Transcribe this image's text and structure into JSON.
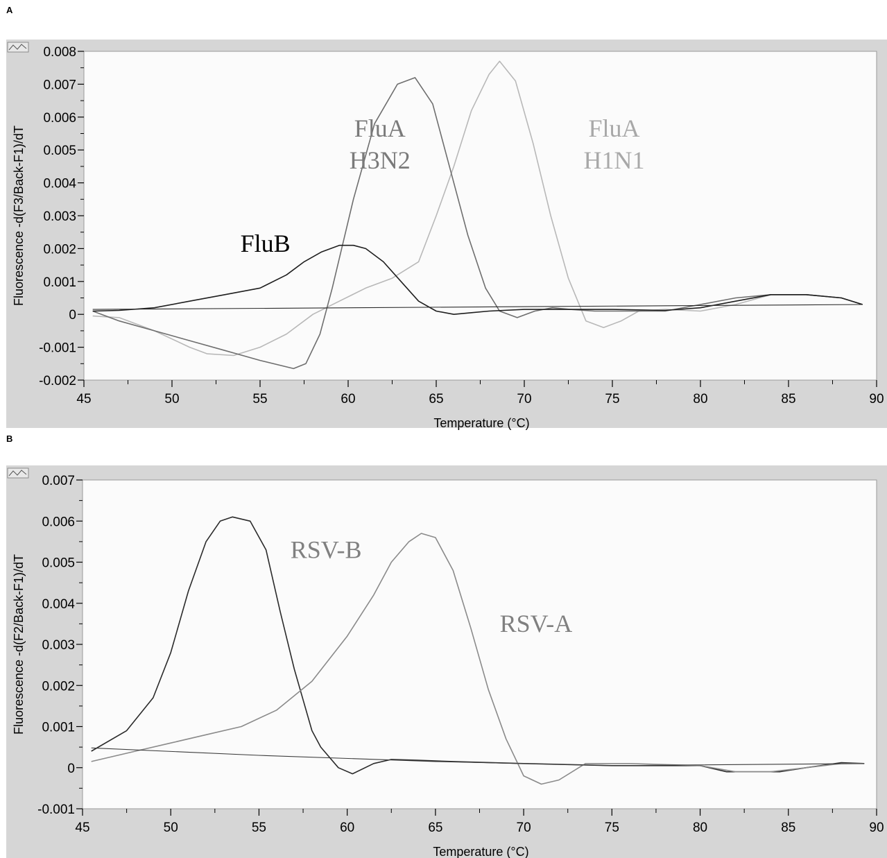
{
  "chart_data": [
    {
      "panel": "A",
      "type": "line",
      "xlabel": "Temperature (°C)",
      "ylabel": "Fluorescence -d(F3/Back-F1)/dT",
      "xlim": [
        45,
        90
      ],
      "ylim": [
        -0.002,
        0.008
      ],
      "xticks": [
        45,
        50,
        55,
        60,
        65,
        70,
        75,
        80,
        85,
        90
      ],
      "xtick_labels": [
        "45",
        "50",
        "55",
        "60",
        "65",
        "70",
        "75",
        "80",
        "85",
        "90"
      ],
      "yticks": [
        -0.002,
        -0.001,
        0,
        0.001,
        0.002,
        0.003,
        0.004,
        0.005,
        0.006,
        0.007,
        0.008
      ],
      "ytick_labels": [
        "-0.002",
        "-0.001",
        "0",
        "0.001",
        "0.002",
        "0.003",
        "0.004",
        "0.005",
        "0.006",
        "0.007",
        "0.008"
      ],
      "grid": false,
      "series": [
        {
          "name": "FluA H1N1",
          "color": "#b8b8b8",
          "width": 1.6,
          "x": [
            45.5,
            47,
            49,
            51,
            52,
            53.5,
            55,
            56.5,
            58,
            59.5,
            61,
            62.5,
            64,
            65,
            66,
            67,
            68,
            68.6,
            69.5,
            70.5,
            71.5,
            72.5,
            73.5,
            74.5,
            75.5,
            76.5,
            78,
            80,
            82,
            84,
            86,
            88,
            89.2
          ],
          "y": [
            -5e-05,
            -0.0001,
            -0.0005,
            -0.001,
            -0.0012,
            -0.00125,
            -0.001,
            -0.0006,
            0,
            0.0004,
            0.0008,
            0.0011,
            0.0016,
            0.003,
            0.0045,
            0.0062,
            0.0073,
            0.0077,
            0.0071,
            0.0052,
            0.003,
            0.0011,
            -0.0002,
            -0.0004,
            -0.0002,
            0.0001,
            0.00015,
            0.0001,
            0.0003,
            0.0006,
            0.0006,
            0.0005,
            0.0003
          ]
        },
        {
          "name": "FluA H3N2",
          "color": "#6e6e6e",
          "width": 1.6,
          "x": [
            45.5,
            47,
            49,
            51,
            53,
            55,
            56.9,
            57.6,
            58.4,
            59.1,
            60.3,
            61.5,
            62.8,
            63.8,
            64.8,
            65.8,
            66.8,
            67.8,
            68.6,
            69.6,
            70.6,
            71.6,
            72.6,
            74,
            76,
            78,
            80,
            82,
            84,
            86,
            88,
            89.2
          ],
          "y": [
            0.0001,
            -0.0002,
            -0.0005,
            -0.0008,
            -0.0011,
            -0.0014,
            -0.00165,
            -0.0015,
            -0.0006,
            0.0008,
            0.0035,
            0.0058,
            0.007,
            0.0072,
            0.0064,
            0.0044,
            0.0024,
            0.0008,
            0.0001,
            -0.0001,
            0.0001,
            0.0002,
            0.00015,
            0.0001,
            0.0001,
            0.0001,
            0.0003,
            0.0005,
            0.0006,
            0.0006,
            0.0005,
            0.0003
          ]
        },
        {
          "name": "FluB",
          "color": "#1e1e1e",
          "width": 1.6,
          "x": [
            45.5,
            47,
            49,
            51,
            53,
            55,
            56.5,
            57.5,
            58.5,
            59.5,
            60.3,
            61,
            62,
            63,
            64,
            65,
            66,
            67,
            68,
            70,
            72,
            75,
            78,
            80,
            82,
            84,
            86,
            88,
            89.2
          ],
          "y": [
            0.0001,
            0.00012,
            0.0002,
            0.0004,
            0.0006,
            0.0008,
            0.0012,
            0.0016,
            0.0019,
            0.0021,
            0.0021,
            0.002,
            0.0016,
            0.001,
            0.0004,
            0.0001,
            0,
            5e-05,
            0.0001,
            0.00015,
            0.00015,
            0.00015,
            0.00012,
            0.0002,
            0.0004,
            0.0006,
            0.0006,
            0.0005,
            0.0003
          ]
        },
        {
          "name": "",
          "color": "#2a2a2a",
          "width": 1.1,
          "x": [
            45.5,
            89.2
          ],
          "y": [
            0.00015,
            0.0003
          ]
        }
      ],
      "annotations": [
        {
          "lines": [
            "FluA",
            "H3N2"
          ],
          "x": 61.8,
          "y": 0.0054,
          "color": "#7a7a7a"
        },
        {
          "lines": [
            "FluA",
            "H1N1"
          ],
          "x": 75.1,
          "y": 0.0054,
          "color": "#a8a8a8"
        },
        {
          "lines": [
            "FluB"
          ],
          "x": 55.3,
          "y": 0.0019,
          "color": "#000000"
        }
      ]
    },
    {
      "panel": "B",
      "type": "line",
      "xlabel": "Temperature (°C)",
      "ylabel": "Fluorescence -d(F2/Back-F1)/dT",
      "xlim": [
        45,
        90
      ],
      "ylim": [
        -0.001,
        0.007
      ],
      "xticks": [
        45,
        50,
        55,
        60,
        65,
        70,
        75,
        80,
        85,
        90
      ],
      "xtick_labels": [
        "45",
        "50",
        "55",
        "60",
        "65",
        "70",
        "75",
        "80",
        "85",
        "90"
      ],
      "yticks": [
        -0.001,
        0,
        0.001,
        0.002,
        0.003,
        0.004,
        0.005,
        0.006,
        0.007
      ],
      "ytick_labels": [
        "-0.001",
        "0",
        "0.001",
        "0.002",
        "0.003",
        "0.004",
        "0.005",
        "0.006",
        "0.007"
      ],
      "grid": false,
      "series": [
        {
          "name": "RSV-B",
          "color": "#2a2a2a",
          "width": 1.6,
          "x": [
            45.5,
            47.5,
            49,
            50,
            51,
            52,
            52.8,
            53.5,
            54.5,
            55.4,
            56.2,
            57,
            58,
            58.5,
            59.5,
            60.3,
            61.5,
            62.5,
            64,
            66,
            70,
            75,
            80,
            81.5,
            83,
            84.5,
            86,
            88,
            89.3
          ],
          "y": [
            0.0004,
            0.0009,
            0.0017,
            0.0028,
            0.0043,
            0.0055,
            0.006,
            0.0061,
            0.006,
            0.0053,
            0.0038,
            0.0024,
            0.0009,
            0.0005,
            0,
            -0.00015,
            0.0001,
            0.0002,
            0.00018,
            0.00015,
            0.0001,
            5e-05,
            5e-05,
            -0.0001,
            -0.0001,
            -0.0001,
            0,
            0.00012,
            0.0001
          ]
        },
        {
          "name": "RSV-A",
          "color": "#8a8a8a",
          "width": 1.6,
          "x": [
            45.5,
            48,
            50,
            52,
            54,
            56,
            58,
            60,
            61.5,
            62.5,
            63.5,
            64.2,
            65,
            66,
            67,
            68,
            69,
            70,
            71,
            72,
            73.5,
            76,
            80,
            82,
            84,
            86,
            88,
            89.3
          ],
          "y": [
            0.00015,
            0.0004,
            0.0006,
            0.0008,
            0.001,
            0.0014,
            0.0021,
            0.0032,
            0.0042,
            0.005,
            0.0055,
            0.0057,
            0.0056,
            0.0048,
            0.0034,
            0.0019,
            0.0007,
            -0.0002,
            -0.0004,
            -0.0003,
            0.0001,
            0.0001,
            5e-05,
            -0.0001,
            -0.0001,
            0,
            0.0001,
            0.0001
          ]
        },
        {
          "name": "",
          "color": "#3a3a3a",
          "width": 1.1,
          "x": [
            45.5,
            55,
            65,
            75,
            89.3
          ],
          "y": [
            0.00048,
            0.0003,
            0.00015,
            5e-05,
            0.0001
          ]
        }
      ],
      "annotations": [
        {
          "lines": [
            "RSV-B"
          ],
          "x": 58.8,
          "y": 0.0051,
          "color": "#808080"
        },
        {
          "lines": [
            "RSV-A"
          ],
          "x": 70.7,
          "y": 0.0033,
          "color": "#808080"
        }
      ]
    }
  ],
  "panel_labels": [
    "A",
    "B"
  ]
}
